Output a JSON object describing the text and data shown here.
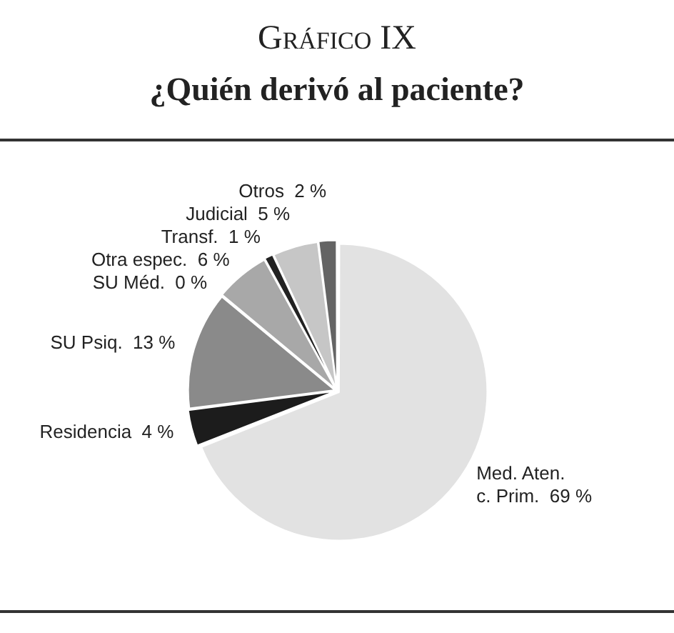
{
  "chart_data": {
    "type": "pie",
    "title": "Gráfico IX",
    "subtitle": "¿Quién derivó al paciente?",
    "categories": [
      "Med. Aten. c. Prim.",
      "Residencia",
      "SU Psiq.",
      "SU Méd.",
      "Otra espec.",
      "Transf.",
      "Judicial",
      "Otros"
    ],
    "values": [
      69,
      4,
      13,
      0,
      6,
      1,
      5,
      2
    ],
    "value_labels": [
      "69 %",
      "4 %",
      "13 %",
      "0 %",
      "6 %",
      "1 %",
      "5 %",
      "2 %"
    ],
    "colors": [
      "#e2e2e2",
      "#1c1c1c",
      "#8a8a8a",
      "#9a9a9a",
      "#a8a8a8",
      "#222222",
      "#c6c6c6",
      "#646464"
    ],
    "legend": false
  }
}
